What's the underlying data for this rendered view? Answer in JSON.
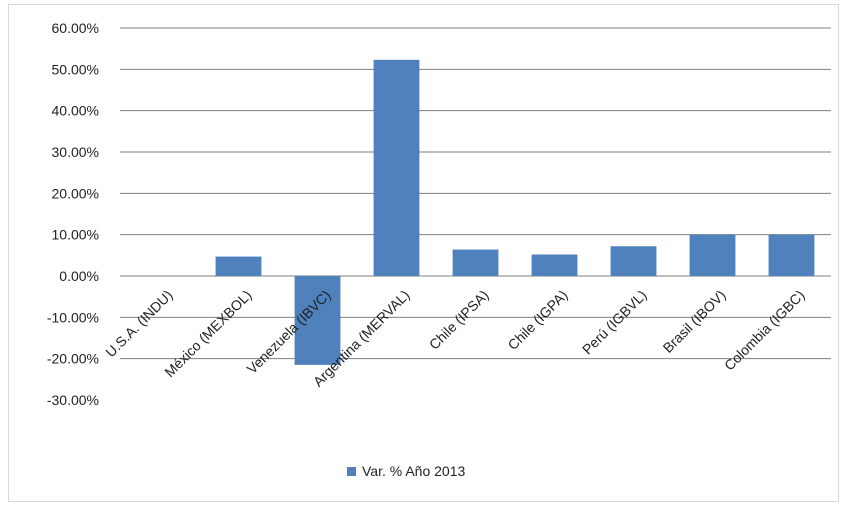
{
  "chart_data": {
    "type": "bar",
    "categories": [
      "U.S.A. (INDU)",
      "México (MEXBOL)",
      "Venezuela (IBVC)",
      "Argentina (MERVAL)",
      "Chile (IPSA)",
      "Chile (IGPA)",
      "Perú (IGBVL)",
      "Brasil (IBOV)",
      "Colombia (IGBC)"
    ],
    "series": [
      {
        "name": "Var. % Año 2013",
        "values": [
          0.0,
          4.7,
          -21.5,
          52.3,
          6.4,
          5.2,
          7.2,
          10.0,
          10.0
        ]
      }
    ],
    "y_ticks": [
      "60.00%",
      "50.00%",
      "40.00%",
      "30.00%",
      "20.00%",
      "10.00%",
      "0.00%",
      "-10.00%",
      "-20.00%",
      "-30.00%"
    ],
    "ylim": [
      -30,
      60
    ],
    "grid": true,
    "legend_position": "bottom",
    "bar_color": "#4f81bd",
    "grid_color": "#7f7f7f"
  }
}
